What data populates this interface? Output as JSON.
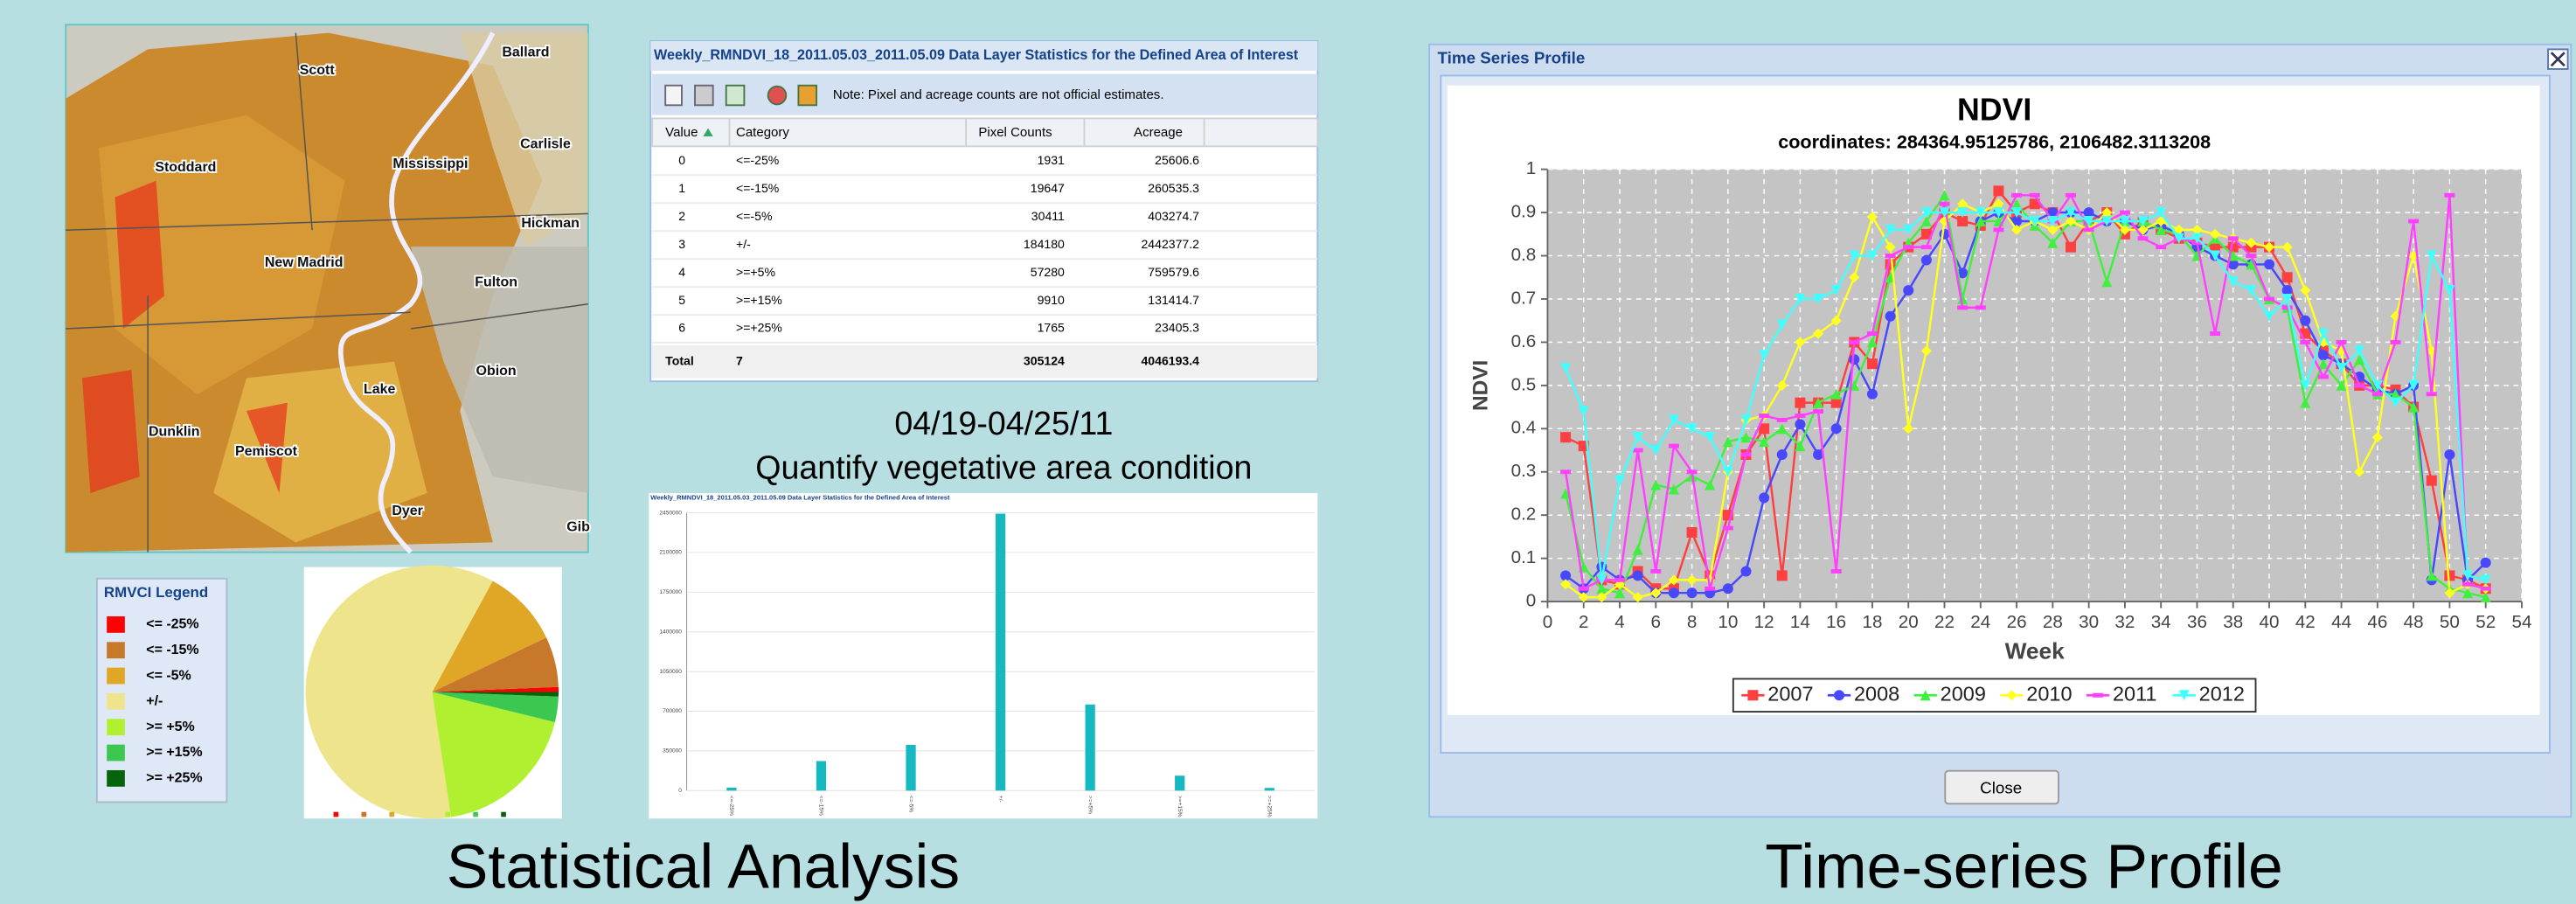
{
  "map": {
    "labels": [
      "Scott",
      "Ballard",
      "Stoddard",
      "Mississippi",
      "Carlisle",
      "Hickman",
      "New Madrid",
      "Fulton",
      "Obion",
      "Lake",
      "Dunklin",
      "Pemiscot",
      "Dyer",
      "Gib"
    ]
  },
  "legend": {
    "title": "RMVCI Legend",
    "items": [
      {
        "label": "<= -25%",
        "color": "#ff0000"
      },
      {
        "label": "<= -15%",
        "color": "#c8782a"
      },
      {
        "label": "<= -5%",
        "color": "#e0a626"
      },
      {
        "label": "+/-",
        "color": "#eee48c"
      },
      {
        "label": ">= +5%",
        "color": "#b0f030"
      },
      {
        "label": ">= +15%",
        "color": "#3cc850"
      },
      {
        "label": ">= +25%",
        "color": "#06640c"
      }
    ]
  },
  "table": {
    "title": "Weekly_RMNDVI_18_2011.05.03_2011.05.09 Data Layer Statistics for the Defined Area of Interest",
    "note": "Note: Pixel and acreage counts are not official estimates.",
    "headers": [
      "Value",
      "Category",
      "Pixel Counts",
      "Acreage"
    ],
    "rows": [
      [
        0,
        "<=-25%",
        1931,
        25606.6
      ],
      [
        1,
        "<=-15%",
        19647,
        260535.3
      ],
      [
        2,
        "<=-5%",
        30411,
        403274.7
      ],
      [
        3,
        "+/-",
        184180,
        2442377.2
      ],
      [
        4,
        ">=+5%",
        57280,
        759579.6
      ],
      [
        5,
        ">=+15%",
        9910,
        131414.7
      ],
      [
        6,
        ">=+25%",
        1765,
        23405.3
      ]
    ],
    "total": {
      "label": "Total",
      "count": 7,
      "pixels": 305124,
      "acreage": 4046193.4
    }
  },
  "caption": {
    "date": "04/19-04/25/11",
    "text": "Quantify vegetative area condition"
  },
  "bar_chart": {
    "type": "bar",
    "color": "#16b9c0",
    "ylim": [
      0,
      2450000
    ],
    "yticks": [
      0,
      350000,
      700000,
      1050000,
      1400000,
      1750000,
      2100000,
      2450000
    ]
  },
  "sections": [
    "Statistical Analysis",
    "Time-series Profile"
  ],
  "window": {
    "title": "Time Series Profile",
    "close": "Close"
  },
  "chart_data": {
    "type": "line",
    "title": "NDVI",
    "subtitle": "coordinates: 284364.95125786, 2106482.3113208",
    "x_label": "Week",
    "y_label": "NDVI",
    "xlim": [
      0,
      54
    ],
    "xticks": [
      0,
      2,
      4,
      6,
      8,
      10,
      12,
      14,
      16,
      18,
      20,
      22,
      24,
      26,
      28,
      30,
      32,
      34,
      36,
      38,
      40,
      42,
      44,
      46,
      48,
      50,
      52,
      54
    ],
    "ylim": [
      0,
      1
    ],
    "yticks": [
      0,
      0.1,
      0.2,
      0.3,
      0.4,
      0.5,
      0.6,
      0.7,
      0.8,
      0.9,
      1
    ],
    "grid": true,
    "x": [
      1,
      2,
      3,
      4,
      5,
      6,
      7,
      8,
      9,
      10,
      11,
      12,
      13,
      14,
      15,
      16,
      17,
      18,
      19,
      20,
      21,
      22,
      23,
      24,
      25,
      26,
      27,
      28,
      29,
      30,
      31,
      32,
      33,
      34,
      35,
      36,
      37,
      38,
      39,
      40,
      41,
      42,
      43,
      44,
      45,
      46,
      47,
      48,
      49,
      50,
      51,
      52
    ],
    "series": [
      {
        "name": "2007",
        "color": "#ff4040",
        "values": [
          0.38,
          0.36,
          0.05,
          0.04,
          0.07,
          0.03,
          0.03,
          0.16,
          0.06,
          0.2,
          0.34,
          0.4,
          0.06,
          0.46,
          0.46,
          0.46,
          0.6,
          0.55,
          0.78,
          0.82,
          0.85,
          0.9,
          0.88,
          0.87,
          0.95,
          0.9,
          0.92,
          0.9,
          0.82,
          0.88,
          0.9,
          0.85,
          0.88,
          0.86,
          0.84,
          0.83,
          0.82,
          0.82,
          0.82,
          0.82,
          0.75,
          0.62,
          0.58,
          0.55,
          0.5,
          0.5,
          0.49,
          0.45,
          0.28,
          0.06,
          0.05,
          0.03
        ]
      },
      {
        "name": "2008",
        "color": "#4848ff",
        "values": [
          0.06,
          0.03,
          0.08,
          0.05,
          0.06,
          0.02,
          0.02,
          0.02,
          0.02,
          0.03,
          0.07,
          0.24,
          0.34,
          0.41,
          0.34,
          0.4,
          0.56,
          0.48,
          0.66,
          0.72,
          0.79,
          0.85,
          0.76,
          0.88,
          0.9,
          0.88,
          0.88,
          0.9,
          0.9,
          0.9,
          0.88,
          0.88,
          0.86,
          0.87,
          0.85,
          0.82,
          0.8,
          0.78,
          0.78,
          0.78,
          0.72,
          0.65,
          0.57,
          0.55,
          0.52,
          0.49,
          0.48,
          0.5,
          0.05,
          0.34,
          0.05,
          0.09
        ]
      },
      {
        "name": "2009",
        "color": "#40f040",
        "values": [
          0.25,
          0.08,
          0.03,
          0.02,
          0.12,
          0.27,
          0.26,
          0.29,
          0.27,
          0.37,
          0.38,
          0.37,
          0.4,
          0.36,
          0.46,
          0.48,
          0.5,
          0.6,
          0.75,
          0.83,
          0.88,
          0.94,
          0.7,
          0.88,
          0.88,
          0.92,
          0.87,
          0.83,
          0.88,
          0.88,
          0.74,
          0.88,
          0.88,
          0.86,
          0.85,
          0.8,
          0.84,
          0.8,
          0.78,
          0.7,
          0.68,
          0.46,
          0.55,
          0.5,
          0.56,
          0.48,
          0.48,
          0.45,
          0.06,
          0.03,
          0.02,
          0.01
        ]
      },
      {
        "name": "2010",
        "color": "#ffff20",
        "values": [
          0.04,
          0.01,
          0.01,
          0.04,
          0.01,
          0.02,
          0.05,
          0.05,
          0.05,
          0.3,
          0.42,
          0.43,
          0.5,
          0.6,
          0.62,
          0.65,
          0.75,
          0.89,
          0.82,
          0.4,
          0.58,
          0.88,
          0.92,
          0.9,
          0.92,
          0.86,
          0.88,
          0.86,
          0.88,
          0.86,
          0.9,
          0.86,
          0.86,
          0.88,
          0.86,
          0.86,
          0.85,
          0.84,
          0.83,
          0.82,
          0.82,
          0.72,
          0.6,
          0.58,
          0.3,
          0.38,
          0.66,
          0.8,
          0.58,
          0.02,
          0.04,
          0.03
        ]
      },
      {
        "name": "2011",
        "color": "#ff40ff",
        "values": [
          0.3,
          0.03,
          0.05,
          0.05,
          0.35,
          0.07,
          0.36,
          0.3,
          0.03,
          0.17,
          0.34,
          0.43,
          0.42,
          0.43,
          0.44,
          0.07,
          0.6,
          0.62,
          0.8,
          0.82,
          0.82,
          0.92,
          0.68,
          0.68,
          0.86,
          0.94,
          0.94,
          0.88,
          0.94,
          0.86,
          0.88,
          0.9,
          0.84,
          0.82,
          0.84,
          0.83,
          0.62,
          0.84,
          0.8,
          0.7,
          0.68,
          0.6,
          0.52,
          0.6,
          0.5,
          0.48,
          0.6,
          0.88,
          0.48,
          0.94,
          0.04,
          0.03
        ]
      },
      {
        "name": "2012",
        "color": "#40ffff",
        "values": [
          0.54,
          0.44,
          0.05,
          0.28,
          0.38,
          0.35,
          0.42,
          0.4,
          0.38,
          0.3,
          0.42,
          0.57,
          0.64,
          0.7,
          0.7,
          0.72,
          0.8,
          0.8,
          0.86,
          0.86,
          0.9,
          0.9,
          0.9,
          0.9,
          0.9,
          0.9,
          0.88,
          0.88,
          0.9,
          0.88,
          0.88,
          0.88,
          0.88,
          0.9,
          0.84,
          0.84,
          0.8,
          0.74,
          0.72,
          0.66,
          0.7,
          0.5,
          0.62,
          0.54,
          0.58,
          0.5,
          0.46,
          0.5,
          0.8,
          0.72,
          0.06,
          0.05
        ]
      }
    ]
  }
}
